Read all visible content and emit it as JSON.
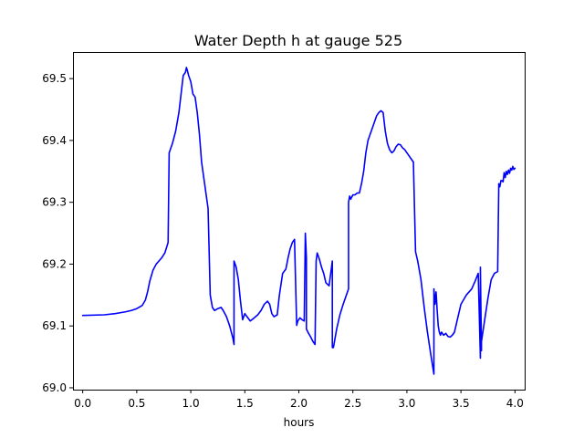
{
  "chart_data": {
    "type": "line",
    "title": "Water Depth h at gauge 525",
    "xlabel": "hours",
    "ylabel": "",
    "xlim": [
      -0.09,
      4.09
    ],
    "ylim": [
      68.997,
      69.543
    ],
    "xticks": [
      0.0,
      0.5,
      1.0,
      1.5,
      2.0,
      2.5,
      3.0,
      3.5,
      4.0
    ],
    "xtick_labels": [
      "0.0",
      "0.5",
      "1.0",
      "1.5",
      "2.0",
      "2.5",
      "3.0",
      "3.5",
      "4.0"
    ],
    "yticks": [
      69.0,
      69.1,
      69.2,
      69.3,
      69.4,
      69.5
    ],
    "ytick_labels": [
      "69.0",
      "69.1",
      "69.2",
      "69.3",
      "69.4",
      "69.5"
    ],
    "grid": false,
    "legend": "none",
    "series": [
      {
        "color": "#0000ff",
        "x": [
          0.0,
          0.2,
          0.3,
          0.4,
          0.45,
          0.5,
          0.55,
          0.58,
          0.6,
          0.62,
          0.65,
          0.68,
          0.7,
          0.73,
          0.76,
          0.79,
          0.8,
          0.8,
          0.83,
          0.86,
          0.89,
          0.91,
          0.93,
          0.95,
          0.96,
          0.97,
          0.98,
          1.0,
          1.02,
          1.04,
          1.06,
          1.08,
          1.1,
          1.12,
          1.14,
          1.16,
          1.18,
          1.18,
          1.2,
          1.22,
          1.25,
          1.28,
          1.3,
          1.33,
          1.36,
          1.39,
          1.4,
          1.4,
          1.42,
          1.44,
          1.46,
          1.48,
          1.5,
          1.52,
          1.55,
          1.58,
          1.6,
          1.62,
          1.65,
          1.68,
          1.71,
          1.73,
          1.75,
          1.77,
          1.8,
          1.82,
          1.85,
          1.88,
          1.9,
          1.92,
          1.94,
          1.96,
          1.98,
          1.99,
          1.99,
          2.01,
          2.03,
          2.05,
          2.06,
          2.06,
          2.07,
          2.07,
          2.09,
          2.11,
          2.13,
          2.15,
          2.16,
          2.16,
          2.17,
          2.19,
          2.21,
          2.23,
          2.25,
          2.28,
          2.31,
          2.31,
          2.32,
          2.32,
          2.35,
          2.38,
          2.41,
          2.44,
          2.46,
          2.46,
          2.47,
          2.48,
          2.5,
          2.52,
          2.54,
          2.56,
          2.58,
          2.6,
          2.62,
          2.64,
          2.66,
          2.68,
          2.7,
          2.72,
          2.74,
          2.76,
          2.78,
          2.8,
          2.82,
          2.84,
          2.86,
          2.88,
          2.9,
          2.92,
          2.94,
          2.96,
          2.98,
          3.0,
          3.02,
          3.04,
          3.06,
          3.08,
          3.08,
          3.1,
          3.13,
          3.16,
          3.19,
          3.22,
          3.25,
          3.25,
          3.26,
          3.27,
          3.28,
          3.29,
          3.3,
          3.31,
          3.32,
          3.34,
          3.36,
          3.38,
          3.4,
          3.42,
          3.44,
          3.46,
          3.5,
          3.55,
          3.6,
          3.63,
          3.66,
          3.68,
          3.68,
          3.69,
          3.69,
          3.72,
          3.75,
          3.78,
          3.81,
          3.84,
          3.85,
          3.85,
          3.86,
          3.87,
          3.88,
          3.89,
          3.9,
          3.91,
          3.92,
          3.93,
          3.94,
          3.95,
          3.96,
          3.97,
          3.98,
          3.99,
          4.0
        ],
        "y": [
          69.117,
          69.118,
          69.12,
          69.123,
          69.125,
          69.128,
          69.133,
          69.142,
          69.155,
          69.172,
          69.19,
          69.2,
          69.204,
          69.21,
          69.218,
          69.235,
          69.38,
          69.38,
          69.395,
          69.415,
          69.445,
          69.475,
          69.505,
          69.51,
          69.518,
          69.512,
          69.505,
          69.495,
          69.475,
          69.47,
          69.445,
          69.41,
          69.365,
          69.34,
          69.315,
          69.29,
          69.15,
          69.15,
          69.13,
          69.125,
          69.128,
          69.13,
          69.125,
          69.115,
          69.1,
          69.08,
          69.07,
          69.205,
          69.195,
          69.175,
          69.14,
          69.11,
          69.12,
          69.115,
          69.108,
          69.112,
          69.115,
          69.118,
          69.125,
          69.135,
          69.14,
          69.135,
          69.12,
          69.115,
          69.118,
          69.15,
          69.185,
          69.192,
          69.21,
          69.225,
          69.235,
          69.24,
          69.101,
          69.108,
          69.108,
          69.113,
          69.11,
          69.108,
          69.25,
          69.25,
          69.21,
          69.095,
          69.088,
          69.082,
          69.075,
          69.07,
          69.205,
          69.205,
          69.218,
          69.208,
          69.195,
          69.185,
          69.17,
          69.165,
          69.205,
          69.065,
          69.065,
          69.065,
          69.095,
          69.118,
          69.135,
          69.15,
          69.16,
          69.3,
          69.31,
          69.305,
          69.312,
          69.312,
          69.315,
          69.315,
          69.33,
          69.35,
          69.38,
          69.4,
          69.41,
          69.42,
          69.43,
          69.44,
          69.445,
          69.448,
          69.445,
          69.415,
          69.395,
          69.385,
          69.38,
          69.383,
          69.39,
          69.394,
          69.393,
          69.388,
          69.385,
          69.38,
          69.375,
          69.37,
          69.365,
          69.22,
          69.22,
          69.205,
          69.175,
          69.13,
          69.09,
          69.055,
          69.022,
          69.16,
          69.135,
          69.155,
          69.125,
          69.1,
          69.09,
          69.085,
          69.09,
          69.085,
          69.088,
          69.083,
          69.082,
          69.085,
          69.09,
          69.105,
          69.135,
          69.15,
          69.16,
          69.172,
          69.185,
          69.048,
          69.195,
          69.06,
          69.075,
          69.11,
          69.145,
          69.175,
          69.185,
          69.188,
          69.325,
          69.33,
          69.325,
          69.335,
          69.335,
          69.333,
          69.348,
          69.34,
          69.35,
          69.345,
          69.352,
          69.347,
          69.355,
          69.352,
          69.358,
          69.353,
          69.355
        ]
      }
    ]
  }
}
